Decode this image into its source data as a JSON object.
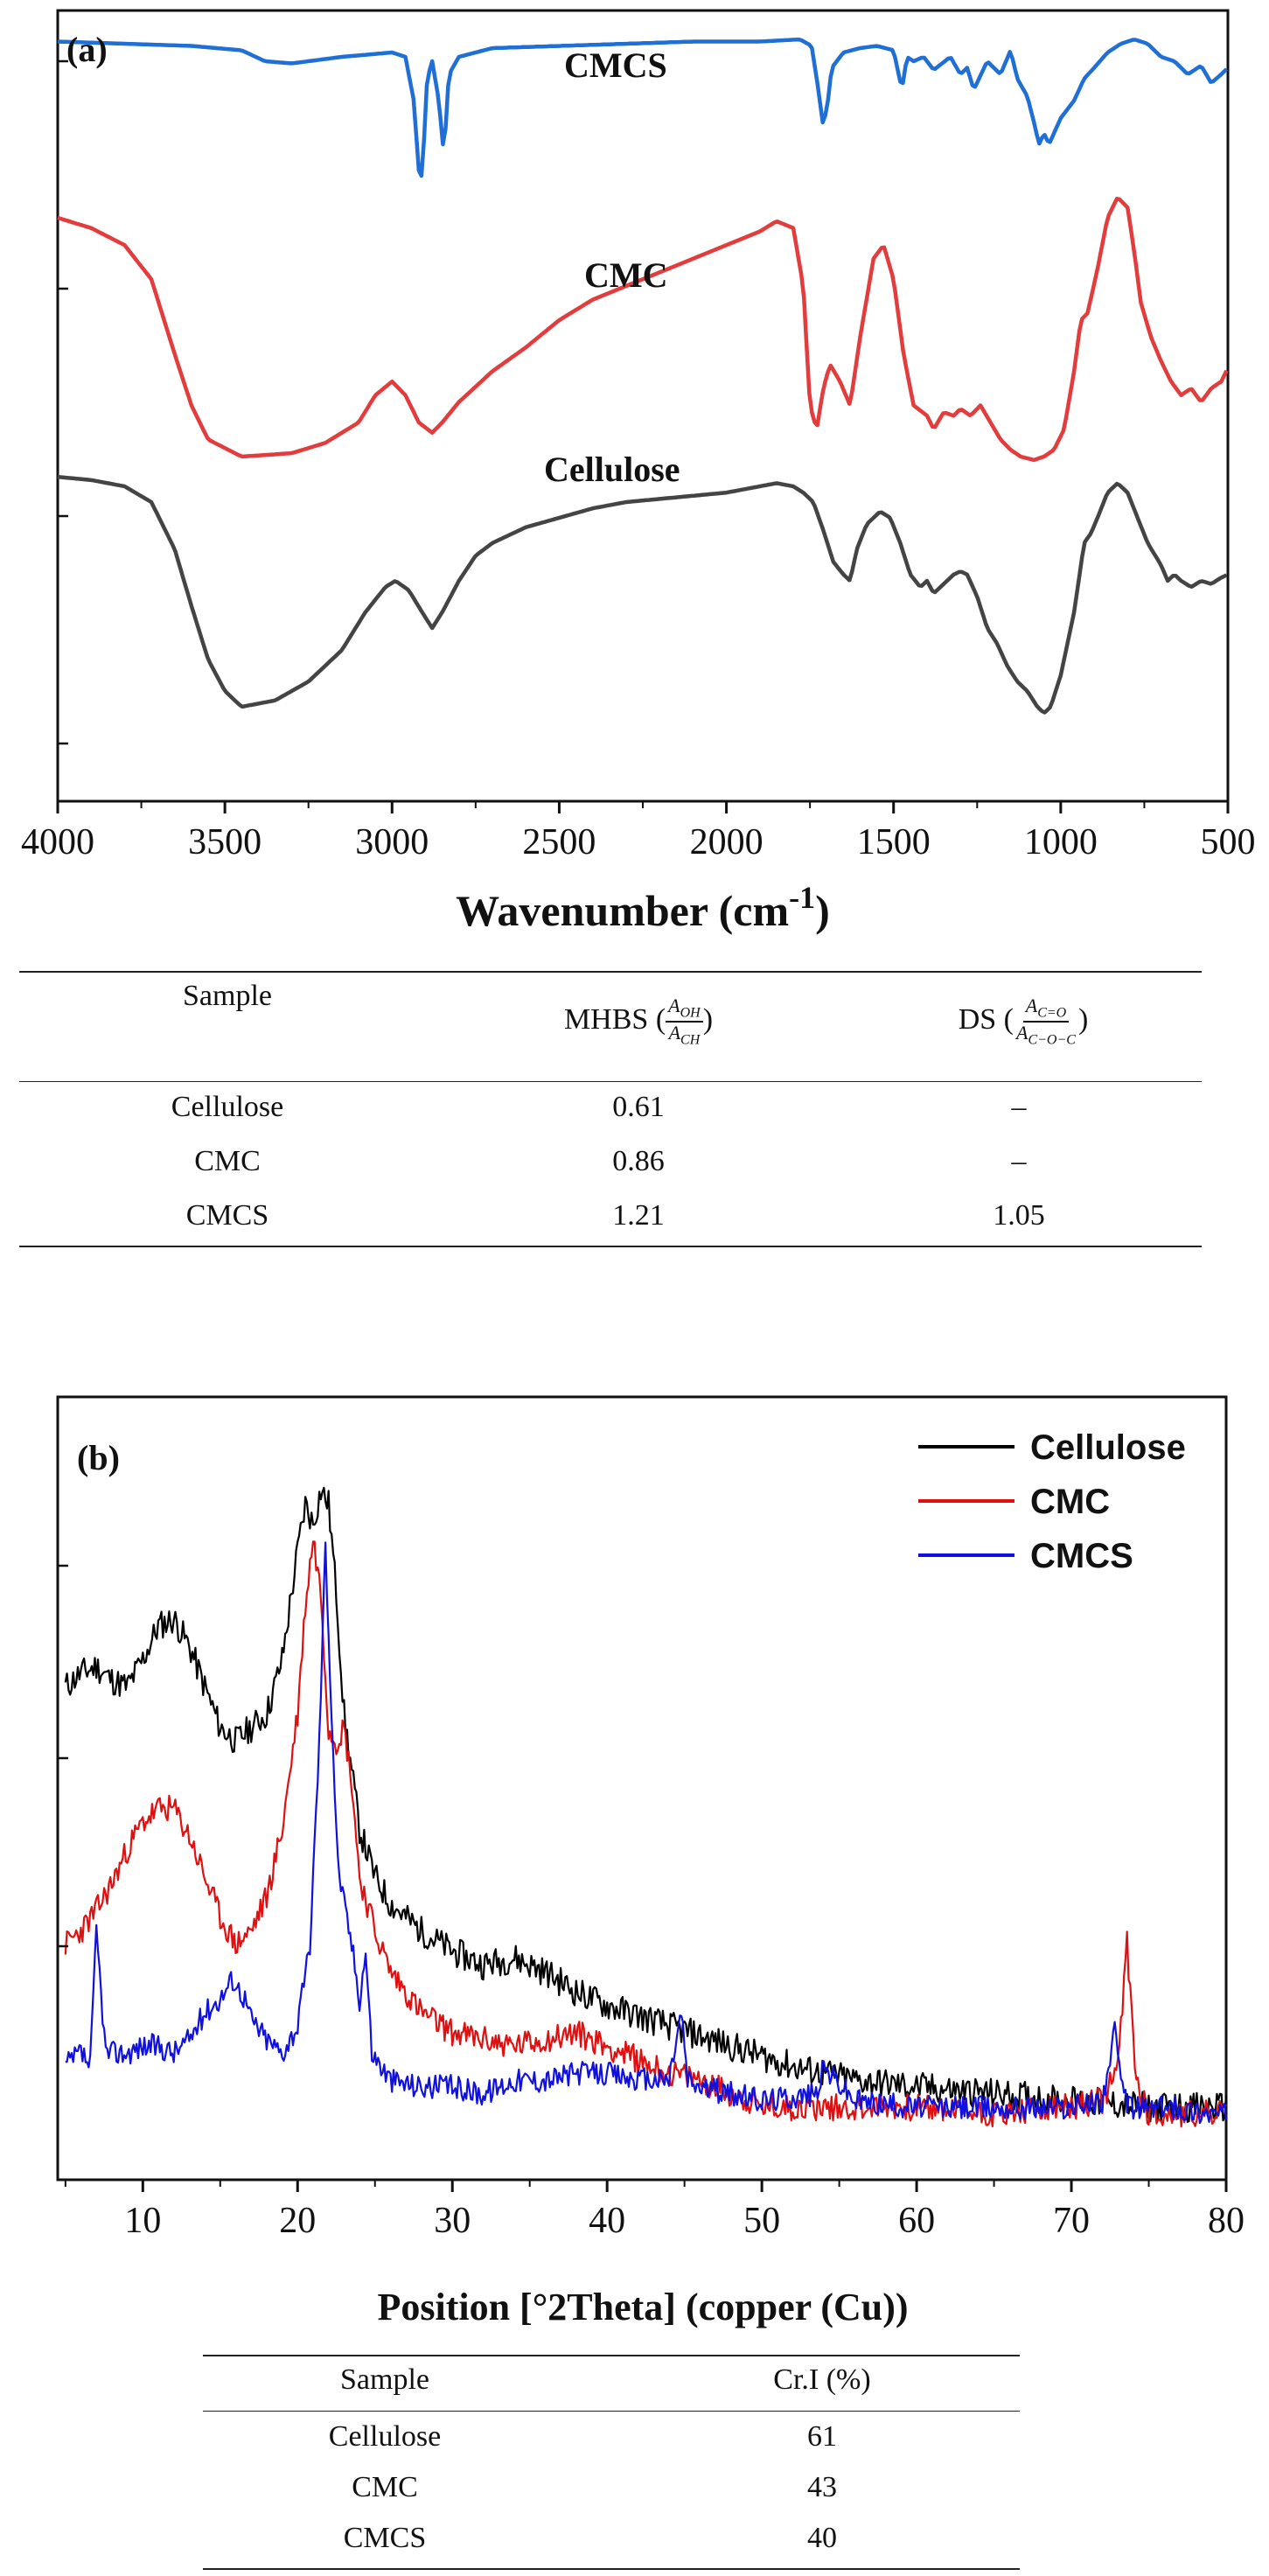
{
  "chart_data": [
    {
      "panel_label": "(a)",
      "type": "line",
      "xlabel": "Wavenumber (cm",
      "xlabel_sup": "-1",
      "xlabel_close": ")",
      "x_reversed": true,
      "xlim": [
        4000,
        500
      ],
      "xticks": [
        "4000",
        "3500",
        "3000",
        "2500",
        "2000",
        "1500",
        "1000",
        "500"
      ],
      "ylabel": "",
      "y_ticks_unlabeled": true,
      "series": [
        {
          "name": "CMCS",
          "color": "#1f6fd6",
          "x": [
            4000,
            3800,
            3600,
            3450,
            3380,
            3300,
            3150,
            3000,
            2960,
            2935,
            2920,
            2910,
            2895,
            2880,
            2860,
            2845,
            2830,
            2800,
            2700,
            2500,
            2300,
            2100,
            1900,
            1780,
            1745,
            1725,
            1712,
            1700,
            1685,
            1650,
            1600,
            1550,
            1500,
            1475,
            1460,
            1440,
            1410,
            1380,
            1330,
            1300,
            1280,
            1260,
            1220,
            1180,
            1150,
            1130,
            1100,
            1080,
            1065,
            1050,
            1035,
            1000,
            960,
            930,
            900,
            860,
            820,
            780,
            740,
            700,
            660,
            620,
            580,
            550,
            520,
            500
          ],
          "y": [
            0.97,
            0.96,
            0.95,
            0.93,
            0.88,
            0.87,
            0.9,
            0.92,
            0.9,
            0.7,
            0.38,
            0.35,
            0.8,
            0.88,
            0.7,
            0.45,
            0.82,
            0.9,
            0.94,
            0.95,
            0.96,
            0.97,
            0.97,
            0.98,
            0.95,
            0.75,
            0.6,
            0.65,
            0.85,
            0.92,
            0.94,
            0.95,
            0.93,
            0.75,
            0.9,
            0.88,
            0.9,
            0.84,
            0.9,
            0.82,
            0.85,
            0.75,
            0.88,
            0.82,
            0.93,
            0.8,
            0.72,
            0.6,
            0.5,
            0.55,
            0.5,
            0.62,
            0.7,
            0.8,
            0.85,
            0.92,
            0.96,
            0.98,
            0.96,
            0.9,
            0.88,
            0.82,
            0.86,
            0.78,
            0.82,
            0.85
          ]
        },
        {
          "name": "CMC",
          "color": "#e23c3c",
          "x": [
            4000,
            3900,
            3800,
            3720,
            3650,
            3600,
            3550,
            3450,
            3300,
            3200,
            3100,
            3050,
            3000,
            2960,
            2920,
            2880,
            2850,
            2800,
            2700,
            2600,
            2500,
            2400,
            2300,
            2200,
            2100,
            2000,
            1900,
            1850,
            1800,
            1770,
            1750,
            1730,
            1710,
            1690,
            1660,
            1630,
            1600,
            1560,
            1530,
            1500,
            1470,
            1440,
            1400,
            1380,
            1350,
            1320,
            1300,
            1270,
            1240,
            1210,
            1180,
            1150,
            1120,
            1080,
            1050,
            1020,
            990,
            960,
            940,
            920,
            890,
            860,
            830,
            800,
            780,
            760,
            730,
            700,
            670,
            640,
            610,
            580,
            550,
            520,
            500
          ],
          "y": [
            0.9,
            0.87,
            0.82,
            0.72,
            0.5,
            0.35,
            0.25,
            0.2,
            0.21,
            0.24,
            0.3,
            0.38,
            0.42,
            0.38,
            0.3,
            0.27,
            0.3,
            0.36,
            0.45,
            0.52,
            0.6,
            0.66,
            0.7,
            0.74,
            0.78,
            0.82,
            0.86,
            0.89,
            0.87,
            0.7,
            0.35,
            0.28,
            0.4,
            0.47,
            0.42,
            0.35,
            0.55,
            0.78,
            0.82,
            0.72,
            0.5,
            0.35,
            0.32,
            0.28,
            0.33,
            0.32,
            0.34,
            0.32,
            0.35,
            0.3,
            0.25,
            0.22,
            0.2,
            0.19,
            0.2,
            0.22,
            0.28,
            0.45,
            0.6,
            0.62,
            0.75,
            0.9,
            0.96,
            0.93,
            0.8,
            0.65,
            0.55,
            0.48,
            0.42,
            0.38,
            0.4,
            0.36,
            0.4,
            0.42,
            0.46
          ]
        },
        {
          "name": "Cellulose",
          "color": "#444444",
          "x": [
            4000,
            3900,
            3800,
            3720,
            3650,
            3600,
            3550,
            3500,
            3450,
            3350,
            3250,
            3150,
            3080,
            3020,
            2990,
            2950,
            2910,
            2880,
            2850,
            2800,
            2750,
            2700,
            2600,
            2500,
            2400,
            2300,
            2200,
            2100,
            2000,
            1900,
            1850,
            1800,
            1770,
            1740,
            1710,
            1680,
            1650,
            1630,
            1610,
            1580,
            1540,
            1510,
            1480,
            1450,
            1420,
            1400,
            1380,
            1360,
            1340,
            1320,
            1300,
            1280,
            1250,
            1220,
            1190,
            1160,
            1130,
            1100,
            1070,
            1050,
            1030,
            1000,
            960,
            930,
            910,
            890,
            860,
            830,
            800,
            770,
            740,
            700,
            680,
            660,
            640,
            610,
            580,
            550,
            520,
            500
          ],
          "y": [
            0.93,
            0.92,
            0.9,
            0.85,
            0.7,
            0.52,
            0.35,
            0.25,
            0.2,
            0.22,
            0.28,
            0.38,
            0.5,
            0.58,
            0.6,
            0.57,
            0.5,
            0.45,
            0.5,
            0.6,
            0.68,
            0.72,
            0.77,
            0.8,
            0.83,
            0.85,
            0.86,
            0.87,
            0.88,
            0.9,
            0.91,
            0.9,
            0.88,
            0.85,
            0.76,
            0.66,
            0.62,
            0.6,
            0.7,
            0.78,
            0.82,
            0.8,
            0.72,
            0.62,
            0.58,
            0.6,
            0.56,
            0.58,
            0.6,
            0.62,
            0.63,
            0.62,
            0.55,
            0.45,
            0.4,
            0.33,
            0.28,
            0.25,
            0.2,
            0.18,
            0.2,
            0.3,
            0.5,
            0.72,
            0.75,
            0.8,
            0.88,
            0.91,
            0.88,
            0.8,
            0.72,
            0.65,
            0.6,
            0.62,
            0.6,
            0.58,
            0.6,
            0.59,
            0.61,
            0.62
          ]
        }
      ],
      "curve_labels": [
        "CMCS",
        "CMC",
        "Cellulose"
      ],
      "table": {
        "header": {
          "sample": "Sample",
          "mhbs_prefix": "MHBS (",
          "mhbs_num": "A",
          "mhbs_num_sub": "OH",
          "mhbs_den": "A",
          "mhbs_den_sub": "CH",
          "mhbs_suffix": ")",
          "ds_prefix": "DS (",
          "ds_num": "A",
          "ds_num_sub": "C=O",
          "ds_den": "A",
          "ds_den_sub": "C−O−C",
          "ds_suffix": ")"
        },
        "rows": [
          {
            "sample": "Cellulose",
            "mhbs": "0.61",
            "ds": "–"
          },
          {
            "sample": "CMC",
            "mhbs": "0.86",
            "ds": "–"
          },
          {
            "sample": "CMCS",
            "mhbs": "1.21",
            "ds": "1.05"
          }
        ]
      }
    },
    {
      "panel_label": "(b)",
      "type": "line",
      "xlabel": "Position [°2Theta] (copper (Cu))",
      "xlim": [
        4.5,
        80
      ],
      "xticks": [
        "10",
        "20",
        "30",
        "40",
        "50",
        "60",
        "70",
        "80"
      ],
      "ylabel": "",
      "y_ticks_unlabeled": true,
      "legend_position": "top-right",
      "series": [
        {
          "name": "Cellulose",
          "color": "#000000",
          "noise": 0.022,
          "seed": 11,
          "x": [
            5,
            6,
            7,
            8,
            9,
            10,
            11,
            12,
            13,
            14,
            15,
            16,
            17,
            18,
            19,
            20,
            20.5,
            21,
            21.5,
            22,
            22.5,
            23,
            24,
            25,
            26,
            28,
            30,
            32,
            34,
            36,
            38,
            40,
            44,
            48,
            52,
            56,
            60,
            65,
            70,
            75,
            80
          ],
          "y": [
            0.66,
            0.68,
            0.69,
            0.67,
            0.66,
            0.7,
            0.75,
            0.76,
            0.72,
            0.66,
            0.6,
            0.58,
            0.6,
            0.62,
            0.7,
            0.86,
            0.93,
            0.9,
            0.95,
            0.93,
            0.8,
            0.62,
            0.45,
            0.38,
            0.34,
            0.3,
            0.27,
            0.25,
            0.26,
            0.24,
            0.21,
            0.19,
            0.16,
            0.13,
            0.1,
            0.08,
            0.07,
            0.06,
            0.05,
            0.04,
            0.04
          ]
        },
        {
          "name": "CMC",
          "color": "#e01010",
          "noise": 0.02,
          "seed": 23,
          "x": [
            5,
            6,
            7,
            8,
            9,
            10,
            11,
            12,
            13,
            14,
            15,
            16,
            17,
            18,
            19,
            20,
            20.5,
            21,
            21.5,
            22,
            22.5,
            23,
            23.5,
            24,
            25,
            26,
            28,
            30,
            32,
            34,
            36,
            38,
            40,
            42,
            44,
            46,
            48,
            50,
            55,
            60,
            65,
            70,
            72,
            73,
            73.6,
            74.2,
            75,
            77,
            80
          ],
          "y": [
            0.28,
            0.3,
            0.33,
            0.37,
            0.42,
            0.46,
            0.48,
            0.48,
            0.44,
            0.38,
            0.32,
            0.28,
            0.3,
            0.35,
            0.45,
            0.62,
            0.78,
            0.88,
            0.8,
            0.6,
            0.58,
            0.6,
            0.52,
            0.38,
            0.3,
            0.24,
            0.18,
            0.15,
            0.14,
            0.13,
            0.14,
            0.15,
            0.13,
            0.11,
            0.09,
            0.08,
            0.06,
            0.04,
            0.04,
            0.04,
            0.03,
            0.04,
            0.05,
            0.1,
            0.28,
            0.08,
            0.03,
            0.03,
            0.03
          ]
        },
        {
          "name": "CMCS",
          "color": "#1010e0",
          "noise": 0.018,
          "seed": 37,
          "x": [
            5,
            6,
            6.6,
            7,
            7.6,
            9,
            10,
            11,
            12,
            13,
            14,
            15,
            15.8,
            16.6,
            17,
            18,
            19,
            20,
            20.8,
            21.4,
            21.8,
            22.2,
            22.6,
            23,
            23.5,
            24,
            24.4,
            24.8,
            26,
            28,
            30,
            32,
            34,
            36,
            38,
            40,
            42,
            44,
            44.8,
            45.2,
            46,
            48,
            50,
            53.5,
            54,
            56,
            60,
            65,
            70,
            72,
            72.8,
            73.4,
            74,
            76,
            80
          ],
          "y": [
            0.1,
            0.12,
            0.1,
            0.3,
            0.12,
            0.12,
            0.13,
            0.13,
            0.12,
            0.14,
            0.18,
            0.2,
            0.23,
            0.2,
            0.17,
            0.14,
            0.12,
            0.16,
            0.28,
            0.58,
            0.87,
            0.62,
            0.4,
            0.34,
            0.28,
            0.2,
            0.27,
            0.12,
            0.08,
            0.07,
            0.07,
            0.06,
            0.08,
            0.08,
            0.09,
            0.09,
            0.08,
            0.08,
            0.18,
            0.08,
            0.07,
            0.06,
            0.05,
            0.06,
            0.1,
            0.05,
            0.04,
            0.04,
            0.04,
            0.05,
            0.15,
            0.05,
            0.04,
            0.04,
            0.03
          ]
        }
      ],
      "table": {
        "header": {
          "sample": "Sample",
          "cri": "Cr.I (%)"
        },
        "rows": [
          {
            "sample": "Cellulose",
            "cri": "61"
          },
          {
            "sample": "CMC",
            "cri": "43"
          },
          {
            "sample": "CMCS",
            "cri": "40"
          }
        ]
      }
    }
  ]
}
